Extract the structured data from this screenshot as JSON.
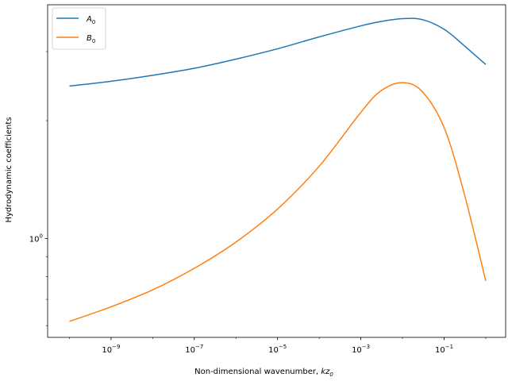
{
  "chart_data": {
    "type": "line",
    "xlabel": "Non-dimensional wavenumber, kz₀",
    "ylabel": "Hydrodynamic coefficients",
    "xscale": "log",
    "yscale": "log",
    "xlim": [
      3e-11,
      3.0
    ],
    "ylim": [
      0.56,
      3.95
    ],
    "xticks": [
      {
        "value": 1e-09,
        "base": "10",
        "exp": "−9"
      },
      {
        "value": 1e-07,
        "base": "10",
        "exp": "−7"
      },
      {
        "value": 1e-05,
        "base": "10",
        "exp": "−5"
      },
      {
        "value": 0.001,
        "base": "10",
        "exp": "−3"
      },
      {
        "value": 0.1,
        "base": "10",
        "exp": "−1"
      }
    ],
    "yticks": [
      {
        "value": 1,
        "base": "10",
        "exp": "0"
      }
    ],
    "grid": false,
    "legend_position": "top-left",
    "series": [
      {
        "name": "A",
        "name_sub": "0",
        "color": "#1f77b4",
        "x": [
          1e-10,
          1e-09,
          1e-08,
          1e-07,
          1e-06,
          1e-05,
          0.0001,
          0.001,
          0.003,
          0.01,
          0.03,
          0.1,
          0.3,
          1.0
        ],
        "y": [
          2.45,
          2.52,
          2.61,
          2.72,
          2.87,
          3.05,
          3.27,
          3.49,
          3.58,
          3.64,
          3.62,
          3.42,
          3.11,
          2.78
        ]
      },
      {
        "name": "B",
        "name_sub": "0",
        "color": "#ff7f0e",
        "x": [
          1e-10,
          1e-09,
          1e-08,
          1e-07,
          1e-06,
          1e-05,
          0.0001,
          0.001,
          0.003,
          0.01,
          0.03,
          0.1,
          0.3,
          1.0
        ],
        "y": [
          0.615,
          0.67,
          0.74,
          0.84,
          0.98,
          1.19,
          1.53,
          2.1,
          2.38,
          2.5,
          2.37,
          1.92,
          1.31,
          0.78
        ]
      }
    ]
  }
}
